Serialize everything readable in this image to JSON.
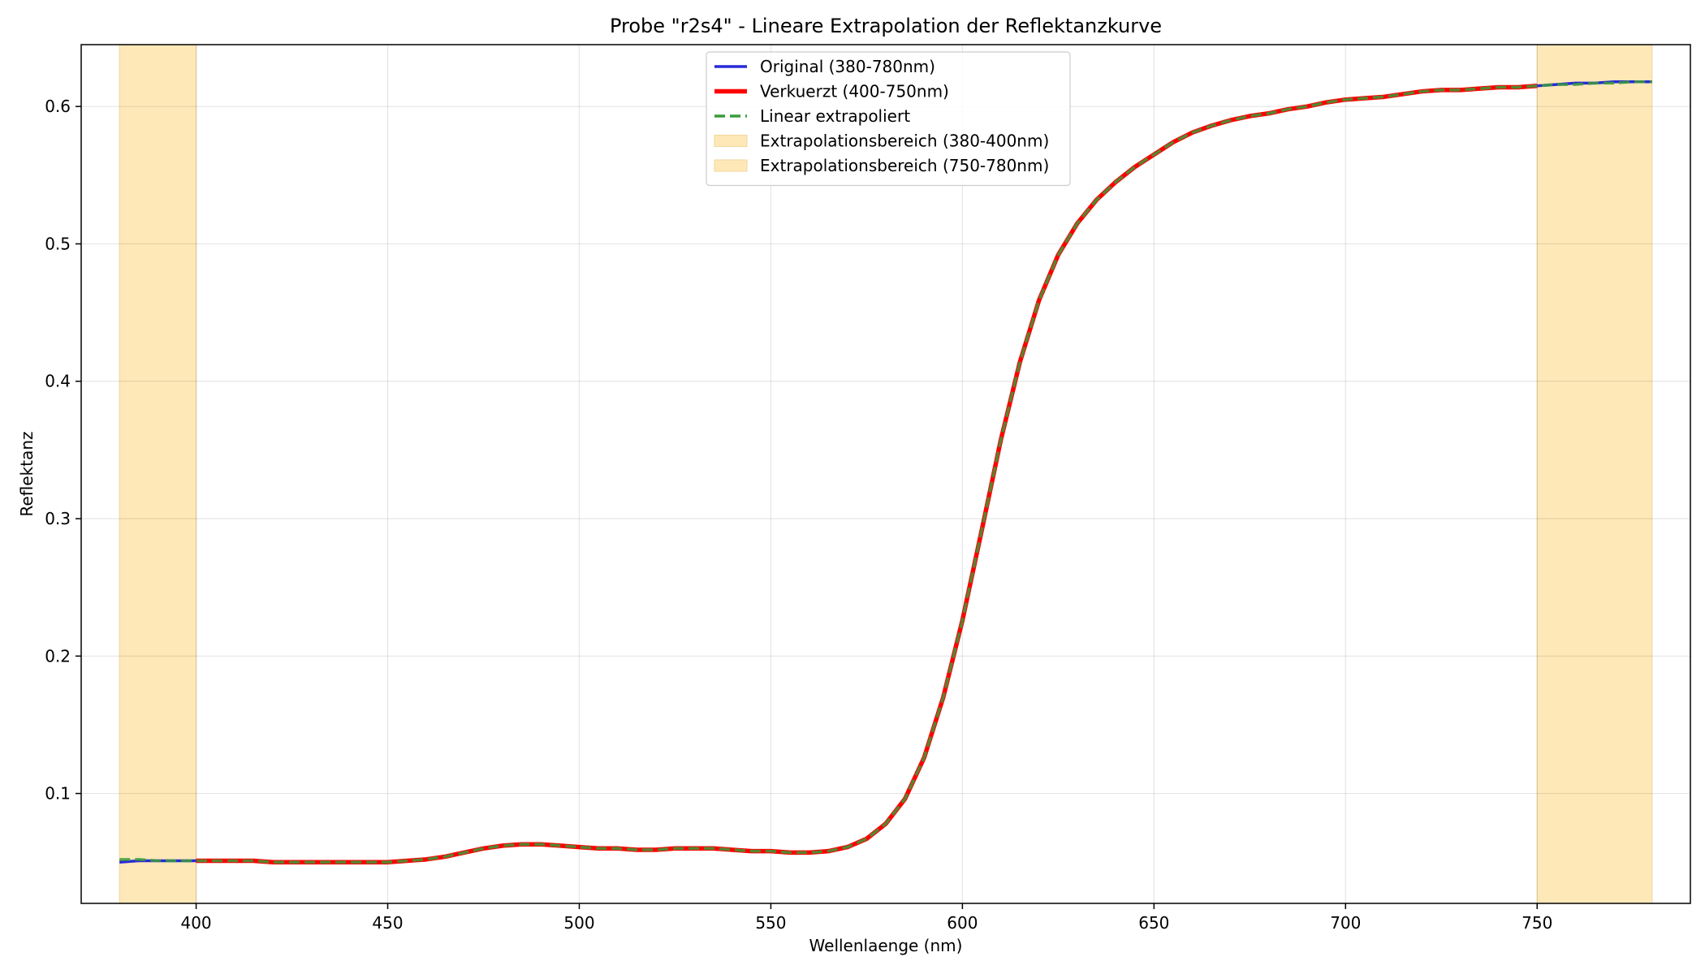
{
  "chart_data": {
    "type": "line",
    "title": "Probe \"r2s4\" - Lineare Extrapolation der Reflektanzkurve",
    "xlabel": "Wellenlaenge (nm)",
    "ylabel": "Reflektanz",
    "xlim": [
      370,
      790
    ],
    "ylim": [
      0.02,
      0.645
    ],
    "xticks": [
      400,
      450,
      500,
      550,
      600,
      650,
      700,
      750
    ],
    "yticks": [
      0.1,
      0.2,
      0.3,
      0.4,
      0.5,
      0.6
    ],
    "ytick_labels": [
      "0.1",
      "0.2",
      "0.3",
      "0.4",
      "0.5",
      "0.6"
    ],
    "grid": true,
    "legend_position": "top-center",
    "spans": [
      {
        "name": "Extrapolationsbereich (380-400nm)",
        "x0": 380,
        "x1": 400,
        "color": "#ffe8b8"
      },
      {
        "name": "Extrapolationsbereich (750-780nm)",
        "x0": 750,
        "x1": 780,
        "color": "#ffe8b8"
      }
    ],
    "series": [
      {
        "name": "Original (380-780nm)",
        "color": "#2a2ad8",
        "style": "solid",
        "x": [
          380,
          385,
          390,
          395,
          400,
          405,
          410,
          415,
          420,
          425,
          430,
          435,
          440,
          445,
          450,
          455,
          460,
          465,
          470,
          475,
          480,
          485,
          490,
          495,
          500,
          505,
          510,
          515,
          520,
          525,
          530,
          535,
          540,
          545,
          550,
          555,
          560,
          565,
          570,
          575,
          580,
          585,
          590,
          595,
          600,
          605,
          610,
          615,
          620,
          625,
          630,
          635,
          640,
          645,
          650,
          655,
          660,
          665,
          670,
          675,
          680,
          685,
          690,
          695,
          700,
          705,
          710,
          715,
          720,
          725,
          730,
          735,
          740,
          745,
          750,
          755,
          760,
          765,
          770,
          775,
          780
        ],
        "y": [
          0.05,
          0.051,
          0.051,
          0.051,
          0.051,
          0.051,
          0.051,
          0.051,
          0.05,
          0.05,
          0.05,
          0.05,
          0.05,
          0.05,
          0.05,
          0.051,
          0.052,
          0.054,
          0.057,
          0.06,
          0.062,
          0.063,
          0.063,
          0.062,
          0.061,
          0.06,
          0.06,
          0.059,
          0.059,
          0.06,
          0.06,
          0.06,
          0.059,
          0.058,
          0.058,
          0.057,
          0.057,
          0.058,
          0.061,
          0.067,
          0.078,
          0.096,
          0.126,
          0.17,
          0.226,
          0.291,
          0.357,
          0.414,
          0.459,
          0.492,
          0.515,
          0.532,
          0.545,
          0.556,
          0.565,
          0.574,
          0.581,
          0.586,
          0.59,
          0.593,
          0.595,
          0.598,
          0.6,
          0.603,
          0.605,
          0.606,
          0.607,
          0.609,
          0.611,
          0.612,
          0.612,
          0.613,
          0.614,
          0.614,
          0.615,
          0.616,
          0.617,
          0.617,
          0.618,
          0.618,
          0.618
        ]
      },
      {
        "name": "Verkuerzt (400-750nm)",
        "color": "#ff0000",
        "style": "solid",
        "x": [
          400,
          405,
          410,
          415,
          420,
          425,
          430,
          435,
          440,
          445,
          450,
          455,
          460,
          465,
          470,
          475,
          480,
          485,
          490,
          495,
          500,
          505,
          510,
          515,
          520,
          525,
          530,
          535,
          540,
          545,
          550,
          555,
          560,
          565,
          570,
          575,
          580,
          585,
          590,
          595,
          600,
          605,
          610,
          615,
          620,
          625,
          630,
          635,
          640,
          645,
          650,
          655,
          660,
          665,
          670,
          675,
          680,
          685,
          690,
          695,
          700,
          705,
          710,
          715,
          720,
          725,
          730,
          735,
          740,
          745,
          750
        ],
        "y": [
          0.051,
          0.051,
          0.051,
          0.051,
          0.05,
          0.05,
          0.05,
          0.05,
          0.05,
          0.05,
          0.05,
          0.051,
          0.052,
          0.054,
          0.057,
          0.06,
          0.062,
          0.063,
          0.063,
          0.062,
          0.061,
          0.06,
          0.06,
          0.059,
          0.059,
          0.06,
          0.06,
          0.06,
          0.059,
          0.058,
          0.058,
          0.057,
          0.057,
          0.058,
          0.061,
          0.067,
          0.078,
          0.096,
          0.126,
          0.17,
          0.226,
          0.291,
          0.357,
          0.414,
          0.459,
          0.492,
          0.515,
          0.532,
          0.545,
          0.556,
          0.565,
          0.574,
          0.581,
          0.586,
          0.59,
          0.593,
          0.595,
          0.598,
          0.6,
          0.603,
          0.605,
          0.606,
          0.607,
          0.609,
          0.611,
          0.612,
          0.612,
          0.613,
          0.614,
          0.614,
          0.615
        ]
      },
      {
        "name": "Linear extrapoliert",
        "color": "#3a9c3a",
        "style": "dashed",
        "x": [
          380,
          385,
          390,
          395,
          400,
          405,
          410,
          415,
          420,
          425,
          430,
          435,
          440,
          445,
          450,
          455,
          460,
          465,
          470,
          475,
          480,
          485,
          490,
          495,
          500,
          505,
          510,
          515,
          520,
          525,
          530,
          535,
          540,
          545,
          550,
          555,
          560,
          565,
          570,
          575,
          580,
          585,
          590,
          595,
          600,
          605,
          610,
          615,
          620,
          625,
          630,
          635,
          640,
          645,
          650,
          655,
          660,
          665,
          670,
          675,
          680,
          685,
          690,
          695,
          700,
          705,
          710,
          715,
          720,
          725,
          730,
          735,
          740,
          745,
          750,
          755,
          760,
          765,
          770,
          775,
          780
        ],
        "y": [
          0.052,
          0.052,
          0.051,
          0.051,
          0.051,
          0.051,
          0.051,
          0.051,
          0.05,
          0.05,
          0.05,
          0.05,
          0.05,
          0.05,
          0.05,
          0.051,
          0.052,
          0.054,
          0.057,
          0.06,
          0.062,
          0.063,
          0.063,
          0.062,
          0.061,
          0.06,
          0.06,
          0.059,
          0.059,
          0.06,
          0.06,
          0.06,
          0.059,
          0.058,
          0.058,
          0.057,
          0.057,
          0.058,
          0.061,
          0.067,
          0.078,
          0.096,
          0.126,
          0.17,
          0.226,
          0.291,
          0.357,
          0.414,
          0.459,
          0.492,
          0.515,
          0.532,
          0.545,
          0.556,
          0.565,
          0.574,
          0.581,
          0.586,
          0.59,
          0.593,
          0.595,
          0.598,
          0.6,
          0.603,
          0.605,
          0.606,
          0.607,
          0.609,
          0.611,
          0.612,
          0.612,
          0.613,
          0.614,
          0.614,
          0.615,
          0.616,
          0.616,
          0.617,
          0.617,
          0.618,
          0.618
        ]
      }
    ]
  }
}
